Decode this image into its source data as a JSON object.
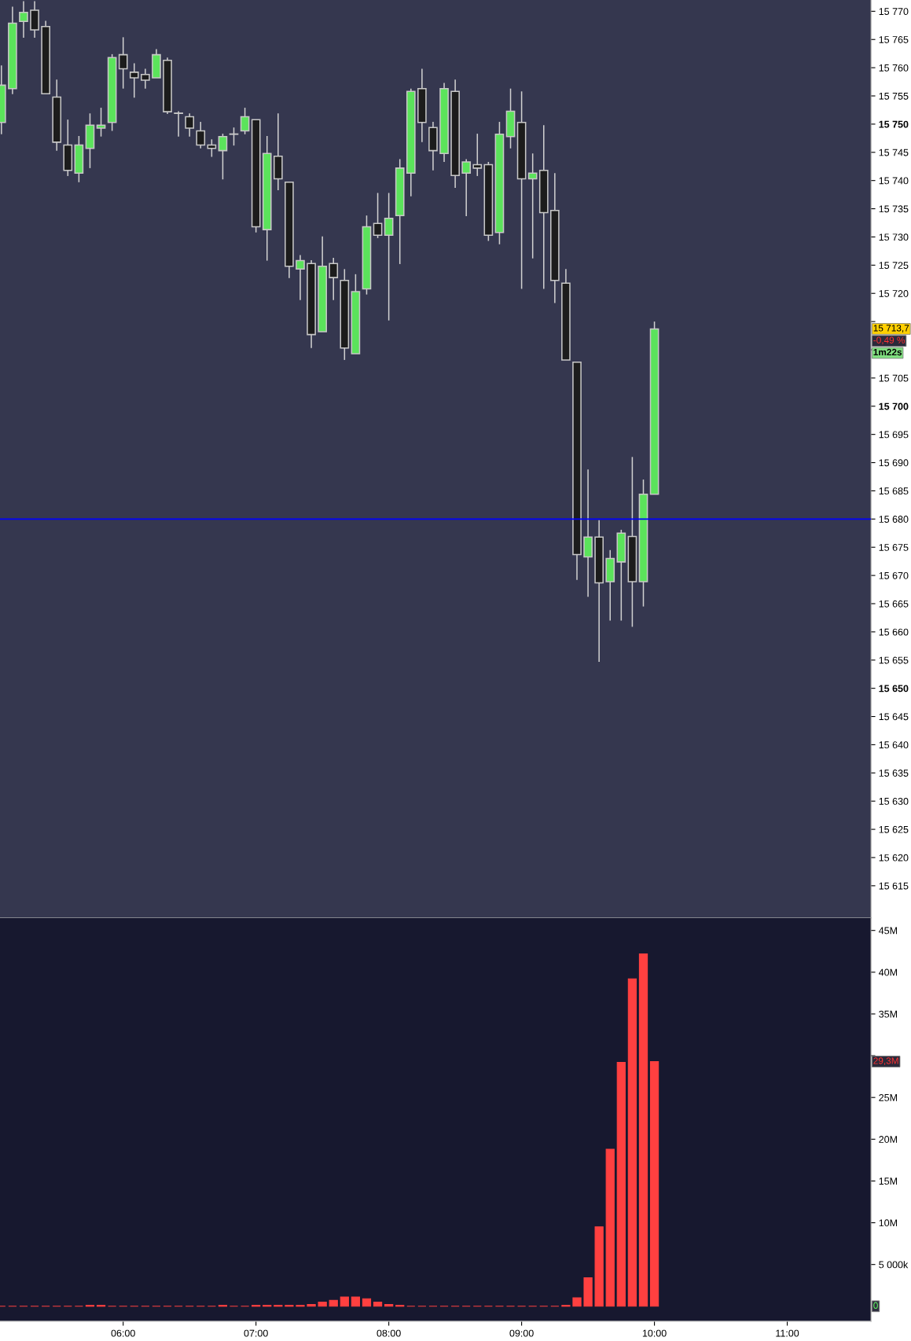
{
  "chart_data": [
    {
      "type": "candlestick",
      "x": [
        5.0833,
        5.1667,
        5.25,
        5.3333,
        5.4167,
        5.5,
        5.5833,
        5.6667,
        5.75,
        5.8333,
        5.9167,
        6.0,
        6.0833,
        6.1667,
        6.25,
        6.3333,
        6.4167,
        6.5,
        6.5833,
        6.6667,
        6.75,
        6.8333,
        6.9167,
        7.0,
        7.0833,
        7.1667,
        7.25,
        7.3333,
        7.4167,
        7.5,
        7.5833,
        7.6667,
        7.75,
        7.8333,
        7.9167,
        8.0,
        8.0833,
        8.1667,
        8.25,
        8.3333,
        8.4167,
        8.5,
        8.5833,
        8.6667,
        8.75,
        8.8333,
        8.9167,
        9.0,
        9.0833,
        9.1667,
        9.25,
        9.3333,
        9.4167,
        9.5,
        9.5833,
        9.6667,
        9.75,
        9.8333,
        9.9167,
        10.0
      ],
      "ohlc": [
        [
          15750.3,
          15760.4,
          15748.2,
          15756.9
        ],
        [
          15756.3,
          15770.8,
          15755.3,
          15767.9
        ],
        [
          15768.2,
          15771.8,
          15765.3,
          15769.8
        ],
        [
          15770.2,
          15771.8,
          15765.3,
          15766.7
        ],
        [
          15767.3,
          15768.3,
          15755.4,
          15755.4
        ],
        [
          15754.8,
          15757.9,
          15745.3,
          15746.8
        ],
        [
          15746.3,
          15750.8,
          15740.8,
          15741.8
        ],
        [
          15741.3,
          15747.9,
          15739.7,
          15746.3
        ],
        [
          15745.7,
          15751.9,
          15742.2,
          15749.8
        ],
        [
          15749.3,
          15752.9,
          15747.8,
          15749.8
        ],
        [
          15750.3,
          15762.4,
          15748.8,
          15761.8
        ],
        [
          15762.3,
          15765.4,
          15756.3,
          15759.8
        ],
        [
          15759.2,
          15760.8,
          15754.7,
          15758.2
        ],
        [
          15758.8,
          15759.8,
          15756.3,
          15757.8
        ],
        [
          15758.2,
          15763.3,
          15758.2,
          15762.3
        ],
        [
          15761.3,
          15761.8,
          15751.8,
          15752.2
        ],
        [
          15751.9,
          15752.3,
          15747.8,
          15751.9
        ],
        [
          15751.3,
          15751.9,
          15747.8,
          15749.3
        ],
        [
          15748.8,
          15750.4,
          15745.7,
          15746.3
        ],
        [
          15746.3,
          15747.3,
          15744.2,
          15745.7
        ],
        [
          15745.3,
          15748.3,
          15740.2,
          15747.8
        ],
        [
          15748.2,
          15749.4,
          15746.2,
          15748.2
        ],
        [
          15748.8,
          15752.9,
          15748.2,
          15751.3
        ],
        [
          15750.8,
          15750.8,
          15730.8,
          15731.8
        ],
        [
          15731.3,
          15747.9,
          15725.8,
          15744.8
        ],
        [
          15744.3,
          15751.9,
          15738.3,
          15740.3
        ],
        [
          15739.7,
          15739.7,
          15722.7,
          15724.8
        ],
        [
          15724.3,
          15726.8,
          15718.8,
          15725.8
        ],
        [
          15725.3,
          15725.9,
          15710.3,
          15712.7
        ],
        [
          15713.2,
          15730.1,
          15713.2,
          15724.8
        ],
        [
          15725.3,
          15726.3,
          15718.8,
          15722.8
        ],
        [
          15722.3,
          15724.3,
          15708.2,
          15710.3
        ],
        [
          15709.3,
          15723.4,
          15709.3,
          15720.3
        ],
        [
          15720.8,
          15733.8,
          15719.8,
          15731.8
        ],
        [
          15732.4,
          15737.8,
          15729.8,
          15730.3
        ],
        [
          15730.3,
          15737.8,
          15715.2,
          15733.3
        ],
        [
          15733.8,
          15743.8,
          15725.2,
          15742.2
        ],
        [
          15741.3,
          15756.3,
          15737.2,
          15755.8
        ],
        [
          15756.3,
          15759.8,
          15746.8,
          15750.3
        ],
        [
          15749.4,
          15750.4,
          15741.8,
          15745.3
        ],
        [
          15744.8,
          15757.3,
          15743.3,
          15756.3
        ],
        [
          15755.8,
          15757.9,
          15738.7,
          15740.9
        ],
        [
          15741.3,
          15743.8,
          15733.7,
          15743.3
        ],
        [
          15742.8,
          15748.3,
          15740.8,
          15742.2
        ],
        [
          15742.8,
          15743.3,
          15729.3,
          15730.3
        ],
        [
          15730.8,
          15750.4,
          15728.7,
          15748.2
        ],
        [
          15747.8,
          15756.3,
          15745.7,
          15752.3
        ],
        [
          15750.3,
          15755.8,
          15720.8,
          15740.3
        ],
        [
          15740.3,
          15744.8,
          15726.2,
          15741.3
        ],
        [
          15741.8,
          15749.8,
          15720.8,
          15734.3
        ],
        [
          15734.7,
          15741.3,
          15718.3,
          15722.3
        ],
        [
          15721.8,
          15724.3,
          15708.2,
          15708.2
        ],
        [
          15707.8,
          15707.8,
          15669.2,
          15673.7
        ],
        [
          15673.3,
          15688.8,
          15666.2,
          15676.8
        ],
        [
          15676.8,
          15679.8,
          15654.7,
          15668.7
        ],
        [
          15668.9,
          15674.5,
          15662.0,
          15673.0
        ],
        [
          15672.4,
          15678.1,
          15662.0,
          15677.5
        ],
        [
          15676.9,
          15691.0,
          15660.9,
          15668.9
        ],
        [
          15668.9,
          15687.0,
          15664.5,
          15684.4
        ],
        [
          15684.4,
          15715.0,
          15684.4,
          15713.7
        ]
      ],
      "colors": [
        "#5be35b",
        "#5be35b",
        "#5be35b",
        "#1c1c1c",
        "#1c1c1c",
        "#1c1c1c",
        "#1c1c1c",
        "#5be35b",
        "#5be35b",
        "#5be35b",
        "#5be35b",
        "#1c1c1c",
        "#1c1c1c",
        "#1c1c1c",
        "#5be35b",
        "#1c1c1c",
        "#1c1c1c",
        "#1c1c1c",
        "#1c1c1c",
        "#1c1c1c",
        "#5be35b",
        "#1c1c1c",
        "#5be35b",
        "#1c1c1c",
        "#5be35b",
        "#1c1c1c",
        "#1c1c1c",
        "#5be35b",
        "#1c1c1c",
        "#5be35b",
        "#1c1c1c",
        "#1c1c1c",
        "#5be35b",
        "#5be35b",
        "#1c1c1c",
        "#5be35b",
        "#5be35b",
        "#5be35b",
        "#1c1c1c",
        "#1c1c1c",
        "#5be35b",
        "#1c1c1c",
        "#5be35b",
        "#1c1c1c",
        "#1c1c1c",
        "#5be35b",
        "#5be35b",
        "#1c1c1c",
        "#5be35b",
        "#1c1c1c",
        "#1c1c1c",
        "#1c1c1c",
        "#1c1c1c",
        "#5be35b",
        "#1c1c1c",
        "#5be35b",
        "#5be35b",
        "#1c1c1c",
        "#5be35b",
        "#5be35b"
      ],
      "xlim": [
        5.0726,
        11.63
      ],
      "ylim": [
        15609.3,
        15772.0
      ],
      "yticks": [
        {
          "value": 15615,
          "label": "15 615"
        },
        {
          "value": 15620,
          "label": "15 620"
        },
        {
          "value": 15625,
          "label": "15 625"
        },
        {
          "value": 15630,
          "label": "15 630"
        },
        {
          "value": 15635,
          "label": "15 635"
        },
        {
          "value": 15640,
          "label": "15 640"
        },
        {
          "value": 15645,
          "label": "15 645"
        },
        {
          "value": 15650,
          "label": "15 650"
        },
        {
          "value": 15655,
          "label": "15 655"
        },
        {
          "value": 15660,
          "label": "15 660"
        },
        {
          "value": 15665,
          "label": "15 665"
        },
        {
          "value": 15670,
          "label": "15 670"
        },
        {
          "value": 15675,
          "label": "15 675"
        },
        {
          "value": 15680,
          "label": "15 680"
        },
        {
          "value": 15685,
          "label": "15 685"
        },
        {
          "value": 15690,
          "label": "15 690"
        },
        {
          "value": 15695,
          "label": "15 695"
        },
        {
          "value": 15700,
          "label": "15 700"
        },
        {
          "value": 15705,
          "label": "15 705"
        },
        {
          "value": 15710,
          "label": null
        },
        {
          "value": 15715,
          "label": null
        },
        {
          "value": 15720,
          "label": "15 720"
        },
        {
          "value": 15725,
          "label": "15 725"
        },
        {
          "value": 15730,
          "label": "15 730"
        },
        {
          "value": 15735,
          "label": "15 735"
        },
        {
          "value": 15740,
          "label": "15 740"
        },
        {
          "value": 15745,
          "label": "15 745"
        },
        {
          "value": 15750,
          "label": "15 750"
        },
        {
          "value": 15755,
          "label": "15 755"
        },
        {
          "value": 15760,
          "label": "15 760"
        },
        {
          "value": 15765,
          "label": "15 765"
        },
        {
          "value": 15770,
          "label": "15 770"
        }
      ],
      "ref_lines": [
        {
          "axis": "y",
          "value": 15680,
          "color": "#0000ff"
        }
      ],
      "annotations": [
        "15 713,7",
        "-0,49 %",
        "1m22s"
      ],
      "tick_labels": "y",
      "grid": false,
      "legend": false
    },
    {
      "type": "bar",
      "x": [
        5.0833,
        5.1667,
        5.25,
        5.3333,
        5.4167,
        5.5,
        5.5833,
        5.6667,
        5.75,
        5.8333,
        5.9167,
        6.0,
        6.0833,
        6.1667,
        6.25,
        6.3333,
        6.4167,
        6.5,
        6.5833,
        6.6667,
        6.75,
        6.8333,
        6.9167,
        7.0,
        7.0833,
        7.1667,
        7.25,
        7.3333,
        7.4167,
        7.5,
        7.5833,
        7.6667,
        7.75,
        7.8333,
        7.9167,
        8.0,
        8.0833,
        8.1667,
        8.25,
        8.3333,
        8.4167,
        8.5,
        8.5833,
        8.6667,
        8.75,
        8.8333,
        8.9167,
        9.0,
        9.0833,
        9.1667,
        9.25,
        9.3333,
        9.4167,
        9.5,
        9.5833,
        9.6667,
        9.75,
        9.8333,
        9.9167,
        10.0
      ],
      "values": [
        0,
        0,
        0,
        0,
        0,
        0,
        0,
        0,
        100000,
        100000,
        0,
        0,
        0,
        0,
        0,
        0,
        0,
        0,
        0,
        0,
        100000,
        0,
        0,
        100000,
        100000,
        100000,
        100000,
        100000,
        200000,
        500000,
        700000,
        1100000,
        1100000,
        900000,
        500000,
        200000,
        100000,
        0,
        0,
        0,
        0,
        0,
        0,
        0,
        0,
        0,
        0,
        0,
        0,
        0,
        0,
        100000,
        1000000,
        3400000,
        9500000,
        18800000,
        29200000,
        39200000,
        42200000,
        29300000
      ],
      "color": "#ff4040",
      "xlim": [
        5.0726,
        11.63
      ],
      "xticks": [
        {
          "value": 6,
          "label": "06:00"
        },
        {
          "value": 7,
          "label": "07:00"
        },
        {
          "value": 8,
          "label": "08:00"
        },
        {
          "value": 9,
          "label": "09:00"
        },
        {
          "value": 10,
          "label": "10:00"
        },
        {
          "value": 11,
          "label": "11:00"
        }
      ],
      "ylim": [
        -1800000,
        46500000
      ],
      "yticks": [
        {
          "value": 5000000,
          "label": "5 000k"
        },
        {
          "value": 10000000,
          "label": "10M"
        },
        {
          "value": 15000000,
          "label": "15M"
        },
        {
          "value": 20000000,
          "label": "20M"
        },
        {
          "value": 25000000,
          "label": "25M"
        },
        {
          "value": 30000000,
          "label": null
        },
        {
          "value": 35000000,
          "label": "35M"
        },
        {
          "value": 40000000,
          "label": "40M"
        },
        {
          "value": 45000000,
          "label": "45M"
        }
      ],
      "annotations": [
        "29,3M",
        "0"
      ],
      "grid": false,
      "legend": false
    }
  ]
}
